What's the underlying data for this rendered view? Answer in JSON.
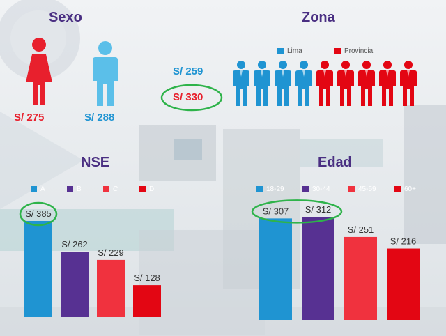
{
  "colors": {
    "blue": "#1f94d2",
    "purple": "#573192",
    "red": "#f0323e",
    "darkred": "#e30613",
    "title": "#4a2f82",
    "highlight": "#2eb34a"
  },
  "sexo": {
    "title": "Sexo",
    "female_value": "S/ 275",
    "male_value": "S/ 288"
  },
  "total": {
    "lima_value": "S/ 259",
    "provincia_value": "S/ 330"
  },
  "zona": {
    "title": "Zona",
    "legend_lima": "Lima",
    "legend_provincia": "Provincia",
    "lima_people": 4,
    "provincia_people": 5
  },
  "chart_data": [
    {
      "type": "bar",
      "title": "NSE",
      "categories": [
        "A",
        "B",
        "C",
        "D"
      ],
      "values": [
        385,
        262,
        229,
        128
      ],
      "labels": [
        "S/ 385",
        "S/ 262",
        "S/ 229",
        "S/ 128"
      ],
      "colors": [
        "#1f94d2",
        "#573192",
        "#f0323e",
        "#e30613"
      ],
      "highlight": [
        0
      ],
      "ylim": [
        0,
        385
      ]
    },
    {
      "type": "bar",
      "title": "Edad",
      "categories": [
        "18-29",
        "30-44",
        "45-59",
        "60+"
      ],
      "values": [
        307,
        312,
        251,
        216
      ],
      "labels": [
        "S/ 307",
        "S/ 312",
        "S/ 251",
        "S/ 216"
      ],
      "colors": [
        "#1f94d2",
        "#573192",
        "#f0323e",
        "#e30613"
      ],
      "highlight": [
        0,
        1
      ],
      "ylim": [
        0,
        312
      ]
    }
  ]
}
